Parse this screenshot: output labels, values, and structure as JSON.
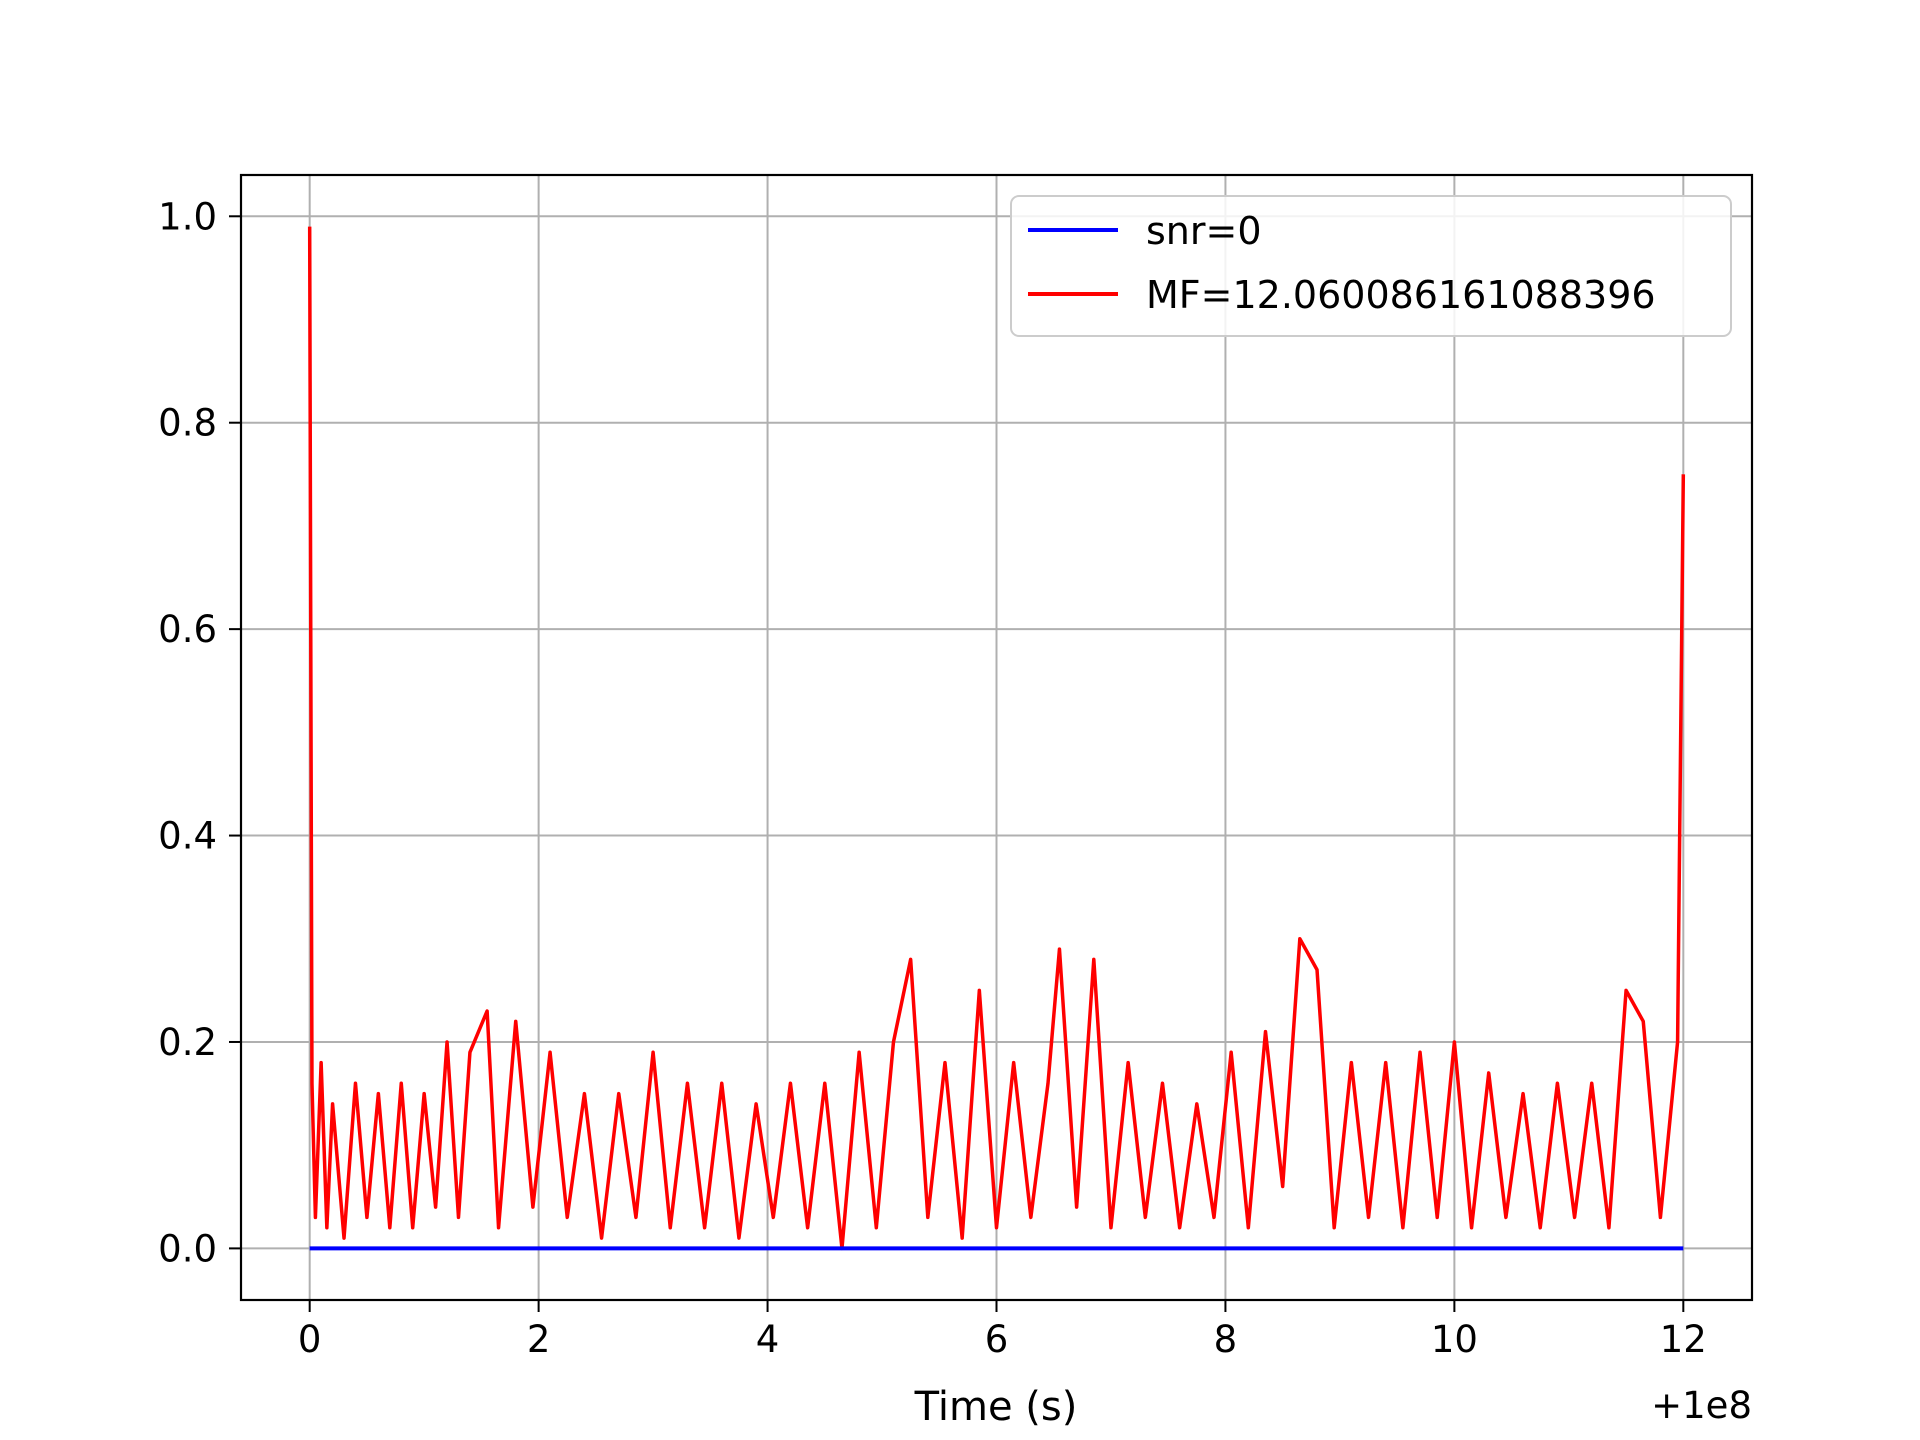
{
  "chart_data": {
    "type": "line",
    "title": "",
    "xlabel": "Time (s)",
    "ylabel": "",
    "x_offset_label": "+1e8",
    "x_offset": 100000000,
    "xlim": [
      -0.6,
      12.6
    ],
    "ylim": [
      -0.05,
      1.04
    ],
    "xticks": [
      0,
      2,
      4,
      6,
      8,
      10,
      12
    ],
    "xtick_labels": [
      "0",
      "2",
      "4",
      "6",
      "8",
      "10",
      "12"
    ],
    "yticks": [
      0.0,
      0.2,
      0.4,
      0.6,
      0.8,
      1.0
    ],
    "ytick_labels": [
      "0.0",
      "0.2",
      "0.4",
      "0.6",
      "0.8",
      "1.0"
    ],
    "grid": true,
    "legend_position": "upper right",
    "series": [
      {
        "name": "snr=0",
        "color": "#0000ff",
        "x": [
          0,
          12
        ],
        "y": [
          0,
          0
        ]
      },
      {
        "name": "MF=12.060086161088396",
        "color": "#ff0000",
        "x": [
          0.0,
          0.02,
          0.05,
          0.1,
          0.15,
          0.2,
          0.3,
          0.4,
          0.5,
          0.6,
          0.7,
          0.8,
          0.9,
          1.0,
          1.1,
          1.2,
          1.3,
          1.4,
          1.55,
          1.65,
          1.8,
          1.95,
          2.1,
          2.25,
          2.4,
          2.55,
          2.7,
          2.85,
          3.0,
          3.15,
          3.3,
          3.45,
          3.6,
          3.75,
          3.9,
          4.05,
          4.2,
          4.35,
          4.5,
          4.65,
          4.8,
          4.95,
          5.1,
          5.25,
          5.4,
          5.55,
          5.7,
          5.85,
          6.0,
          6.15,
          6.3,
          6.45,
          6.55,
          6.7,
          6.85,
          7.0,
          7.15,
          7.3,
          7.45,
          7.6,
          7.75,
          7.9,
          8.05,
          8.2,
          8.35,
          8.5,
          8.65,
          8.8,
          8.95,
          9.1,
          9.25,
          9.4,
          9.55,
          9.7,
          9.85,
          10.0,
          10.15,
          10.3,
          10.45,
          10.6,
          10.75,
          10.9,
          11.05,
          11.2,
          11.35,
          11.5,
          11.65,
          11.8,
          11.95,
          12.0
        ],
        "y": [
          0.99,
          0.16,
          0.03,
          0.18,
          0.02,
          0.14,
          0.01,
          0.16,
          0.03,
          0.15,
          0.02,
          0.16,
          0.02,
          0.15,
          0.04,
          0.2,
          0.03,
          0.19,
          0.23,
          0.02,
          0.22,
          0.04,
          0.19,
          0.03,
          0.15,
          0.01,
          0.15,
          0.03,
          0.19,
          0.02,
          0.16,
          0.02,
          0.16,
          0.01,
          0.14,
          0.03,
          0.16,
          0.02,
          0.16,
          0.0,
          0.19,
          0.02,
          0.2,
          0.28,
          0.03,
          0.18,
          0.01,
          0.25,
          0.02,
          0.18,
          0.03,
          0.16,
          0.29,
          0.04,
          0.28,
          0.02,
          0.18,
          0.03,
          0.16,
          0.02,
          0.14,
          0.03,
          0.19,
          0.02,
          0.21,
          0.06,
          0.3,
          0.27,
          0.02,
          0.18,
          0.03,
          0.18,
          0.02,
          0.19,
          0.03,
          0.2,
          0.02,
          0.17,
          0.03,
          0.15,
          0.02,
          0.16,
          0.03,
          0.16,
          0.02,
          0.25,
          0.22,
          0.03,
          0.2,
          0.75
        ]
      }
    ]
  }
}
